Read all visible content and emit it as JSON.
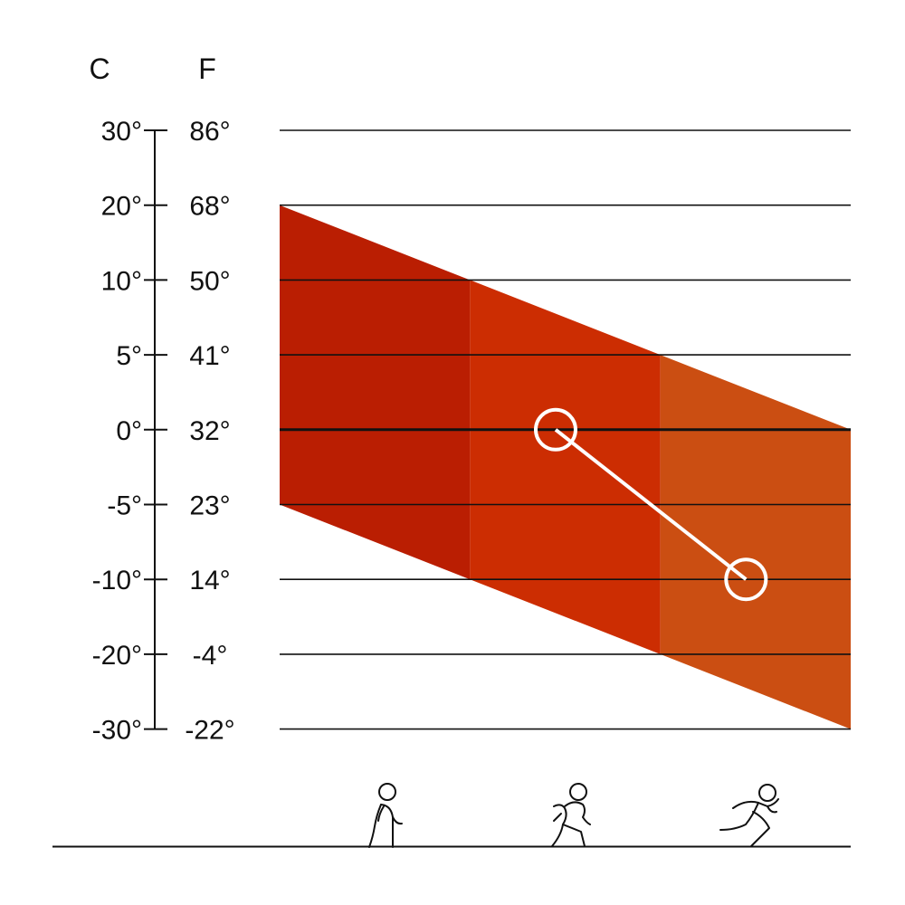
{
  "chart_data": {
    "type": "area",
    "y_axis": {
      "left_unit": "C",
      "right_unit": "F",
      "ticks": [
        {
          "c": "30°",
          "f": "86°"
        },
        {
          "c": "20°",
          "f": "68°"
        },
        {
          "c": "10°",
          "f": "50°"
        },
        {
          "c": "5°",
          "f": "41°"
        },
        {
          "c": "0°",
          "f": "32°"
        },
        {
          "c": "-5°",
          "f": "23°"
        },
        {
          "c": "-10°",
          "f": "14°"
        },
        {
          "c": "-20°",
          "f": "-4°"
        },
        {
          "c": "-30°",
          "f": "-22°"
        }
      ]
    },
    "activities": [
      "walking",
      "jogging",
      "running"
    ],
    "bands": [
      {
        "activity": "walking",
        "color": "#BA1E02",
        "top_start": "20°",
        "top_end": "10°",
        "bottom_start": "-5°",
        "bottom_end": "-10°"
      },
      {
        "activity": "jogging",
        "color": "#CC2D02",
        "top_start": "10°",
        "top_end": "5°",
        "bottom_start": "-10°",
        "bottom_end": "-20°"
      },
      {
        "activity": "running",
        "color": "#CB4E12",
        "top_start": "5°",
        "top_end": "0°",
        "bottom_start": "-20°",
        "bottom_end": "-30°"
      }
    ],
    "markers": [
      {
        "activity_position": 1.45,
        "value": "0°"
      },
      {
        "activity_position": 2.45,
        "value": "-10°"
      }
    ],
    "emphasized_line": "0°",
    "grid": true
  },
  "icons": {
    "walking": "walking-person-icon",
    "jogging": "jogging-person-icon",
    "running": "running-person-icon"
  }
}
